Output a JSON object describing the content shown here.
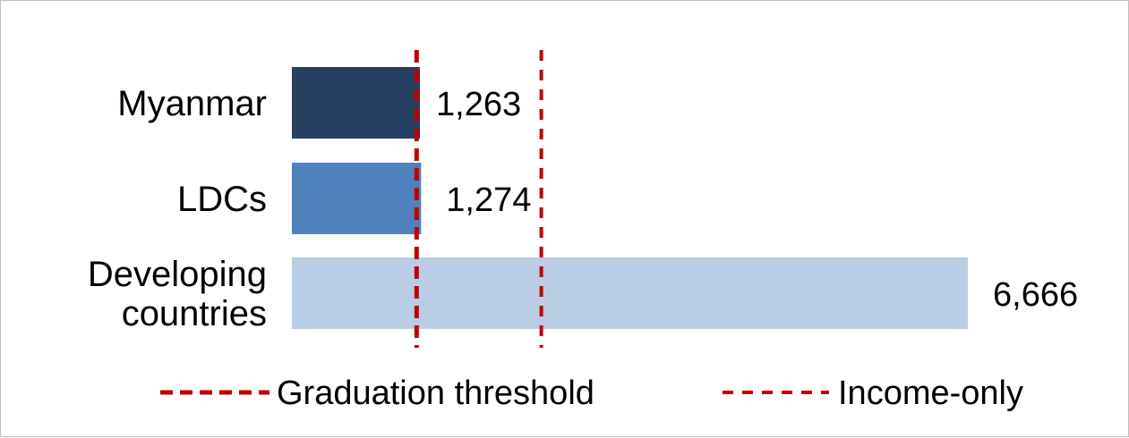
{
  "chart_data": {
    "type": "bar",
    "orientation": "horizontal",
    "categories": [
      [
        "Myanmar"
      ],
      [
        "LDCs"
      ],
      [
        "Developing",
        "countries"
      ]
    ],
    "values": [
      1263,
      1274,
      6666
    ],
    "value_labels": [
      "1,263",
      "1,274",
      "6,666"
    ],
    "bar_colors": [
      "#243f60",
      "#4f81bd",
      "#b9cde5"
    ],
    "reference_lines": [
      {
        "name": "Graduation threshold",
        "value": 1230,
        "color": "#c00000",
        "style": "dashed-heavy"
      },
      {
        "name": "Income-only",
        "value": 2460,
        "color": "#c00000",
        "style": "dashed"
      }
    ],
    "legend_position": "bottom",
    "xlim": [
      0,
      6666
    ],
    "grid": false
  }
}
